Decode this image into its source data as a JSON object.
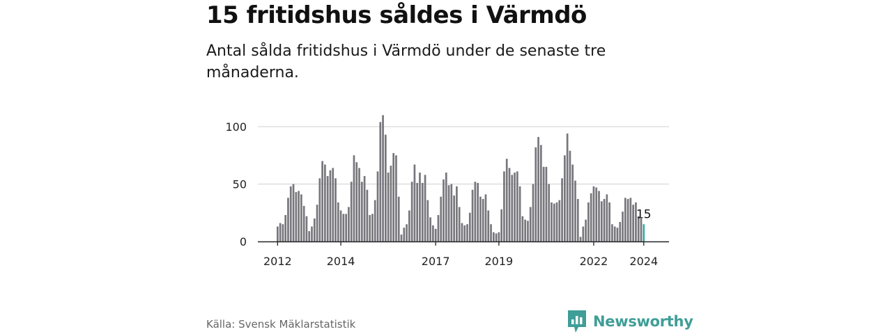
{
  "header": {
    "title": "15 fritidshus såldes i Värmdö",
    "subtitle": "Antal sålda fritidshus i Värmdö under de senaste tre månaderna."
  },
  "footer": {
    "source": "Källa: Svensk Mäklarstatistik",
    "brand": "Newsworthy",
    "brand_icon": "newsworthy-chart-logo-icon"
  },
  "colors": {
    "bar": "#76767c",
    "highlight": "#3aa9a0",
    "grid": "#d9d9d9",
    "axis": "#222222",
    "brand": "#3f9e97"
  },
  "chart_data": {
    "type": "bar",
    "title": "15 fritidshus såldes i Värmdö",
    "xlabel": "",
    "ylabel": "",
    "ylim": [
      0,
      110
    ],
    "yticks": [
      0,
      50,
      100
    ],
    "xtick_labels": [
      "2012",
      "2014",
      "2017",
      "2019",
      "2022",
      "2024"
    ],
    "grid": true,
    "legend": "none",
    "highlight_label": "15",
    "values": [
      13,
      16,
      15,
      23,
      38,
      48,
      50,
      43,
      44,
      41,
      31,
      22,
      9,
      13,
      20,
      32,
      55,
      70,
      67,
      57,
      62,
      64,
      55,
      34,
      27,
      24,
      24,
      30,
      52,
      75,
      69,
      64,
      52,
      57,
      45,
      23,
      24,
      36,
      61,
      104,
      110,
      93,
      60,
      66,
      77,
      75,
      39,
      6,
      12,
      15,
      27,
      52,
      67,
      51,
      60,
      51,
      58,
      36,
      21,
      14,
      11,
      23,
      39,
      54,
      60,
      49,
      50,
      40,
      48,
      30,
      16,
      14,
      15,
      25,
      45,
      52,
      51,
      39,
      37,
      41,
      27,
      15,
      8,
      7,
      8,
      28,
      61,
      72,
      64,
      58,
      60,
      61,
      48,
      22,
      19,
      18,
      30,
      50,
      82,
      91,
      84,
      65,
      65,
      50,
      34,
      33,
      34,
      36,
      55,
      75,
      94,
      79,
      67,
      53,
      37,
      4,
      13,
      19,
      34,
      42,
      48,
      47,
      44,
      35,
      37,
      41,
      34,
      15,
      13,
      12,
      17,
      26,
      38,
      37,
      38,
      32,
      34,
      22,
      20,
      15
    ],
    "note": "Monthly values; bars cover Jan 2012 – latest month (Dec 2023 / early 2024). The last bar is highlighted."
  }
}
